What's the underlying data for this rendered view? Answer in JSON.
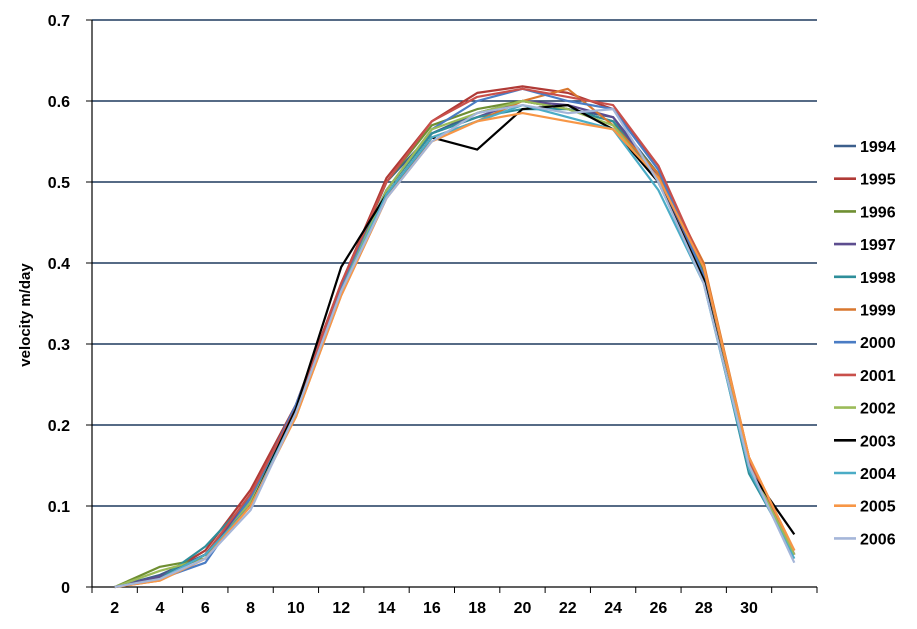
{
  "chart_data": {
    "type": "line",
    "title": "",
    "xlabel": "",
    "ylabel": "velocity m/day",
    "ylim": [
      0,
      0.7
    ],
    "yticks": [
      "0",
      "0.1",
      "0.2",
      "0.3",
      "0.4",
      "0.5",
      "0.6",
      "0.7"
    ],
    "xticks": [
      "2",
      "4",
      "6",
      "8",
      "10",
      "12",
      "14",
      "16",
      "18",
      "20",
      "22",
      "24",
      "26",
      "28",
      "30"
    ],
    "x": [
      2,
      4,
      6,
      8,
      10,
      12,
      14,
      16,
      18,
      20,
      22,
      24,
      26,
      28,
      30,
      32
    ],
    "xlim": [
      1,
      33
    ],
    "grid": "horizontal",
    "legend_position": "right",
    "series": [
      {
        "name": "1994",
        "color": "#3c5f8c",
        "values": [
          0,
          0.015,
          0.04,
          0.11,
          0.22,
          0.37,
          0.5,
          0.56,
          0.585,
          0.6,
          0.59,
          0.58,
          0.51,
          0.38,
          0.15,
          0.045
        ]
      },
      {
        "name": "1995",
        "color": "#b03a36",
        "values": [
          0,
          0.012,
          0.045,
          0.12,
          0.225,
          0.375,
          0.505,
          0.575,
          0.61,
          0.618,
          0.61,
          0.59,
          0.52,
          0.39,
          0.16,
          0.04
        ]
      },
      {
        "name": "1996",
        "color": "#6f8f32",
        "values": [
          0,
          0.025,
          0.035,
          0.11,
          0.215,
          0.37,
          0.5,
          0.57,
          0.59,
          0.6,
          0.59,
          0.575,
          0.51,
          0.39,
          0.15,
          0.04
        ]
      },
      {
        "name": "1997",
        "color": "#5d4d8f",
        "values": [
          0,
          0.013,
          0.04,
          0.11,
          0.22,
          0.37,
          0.49,
          0.56,
          0.58,
          0.6,
          0.595,
          0.58,
          0.505,
          0.38,
          0.15,
          0.04
        ]
      },
      {
        "name": "1998",
        "color": "#2e8e9a",
        "values": [
          0,
          0.01,
          0.05,
          0.11,
          0.215,
          0.37,
          0.49,
          0.56,
          0.58,
          0.59,
          0.59,
          0.575,
          0.5,
          0.38,
          0.14,
          0.04
        ]
      },
      {
        "name": "1999",
        "color": "#d8772e",
        "values": [
          0,
          0.008,
          0.035,
          0.105,
          0.21,
          0.36,
          0.48,
          0.555,
          0.575,
          0.6,
          0.615,
          0.57,
          0.51,
          0.4,
          0.16,
          0.045
        ]
      },
      {
        "name": "2000",
        "color": "#4a7cc4",
        "values": [
          0,
          0.01,
          0.03,
          0.11,
          0.225,
          0.37,
          0.49,
          0.565,
          0.6,
          0.615,
          0.6,
          0.59,
          0.515,
          0.385,
          0.15,
          0.04
        ]
      },
      {
        "name": "2001",
        "color": "#c9504b",
        "values": [
          0,
          0.01,
          0.04,
          0.115,
          0.22,
          0.375,
          0.5,
          0.575,
          0.605,
          0.615,
          0.605,
          0.595,
          0.52,
          0.395,
          0.155,
          0.04
        ]
      },
      {
        "name": "2002",
        "color": "#9bbb59",
        "values": [
          0,
          0.02,
          0.035,
          0.105,
          0.21,
          0.365,
          0.49,
          0.565,
          0.585,
          0.6,
          0.59,
          0.57,
          0.5,
          0.38,
          0.15,
          0.04
        ]
      },
      {
        "name": "2003",
        "color": "#000000",
        "values": [
          0,
          0.01,
          0.04,
          0.1,
          0.22,
          0.395,
          0.485,
          0.555,
          0.54,
          0.59,
          0.595,
          0.565,
          0.5,
          0.38,
          0.145,
          0.065
        ]
      },
      {
        "name": "2004",
        "color": "#4bacc6",
        "values": [
          0,
          0.01,
          0.04,
          0.1,
          0.215,
          0.365,
          0.485,
          0.555,
          0.575,
          0.595,
          0.58,
          0.565,
          0.49,
          0.375,
          0.145,
          0.035
        ]
      },
      {
        "name": "2005",
        "color": "#f79646",
        "values": [
          0,
          0.008,
          0.035,
          0.1,
          0.21,
          0.36,
          0.48,
          0.55,
          0.575,
          0.585,
          0.575,
          0.565,
          0.505,
          0.395,
          0.16,
          0.045
        ]
      },
      {
        "name": "2006",
        "color": "#a5b6d9",
        "values": [
          0,
          0.01,
          0.035,
          0.095,
          0.215,
          0.365,
          0.48,
          0.55,
          0.585,
          0.595,
          0.585,
          0.59,
          0.5,
          0.375,
          0.15,
          0.03
        ]
      }
    ]
  }
}
